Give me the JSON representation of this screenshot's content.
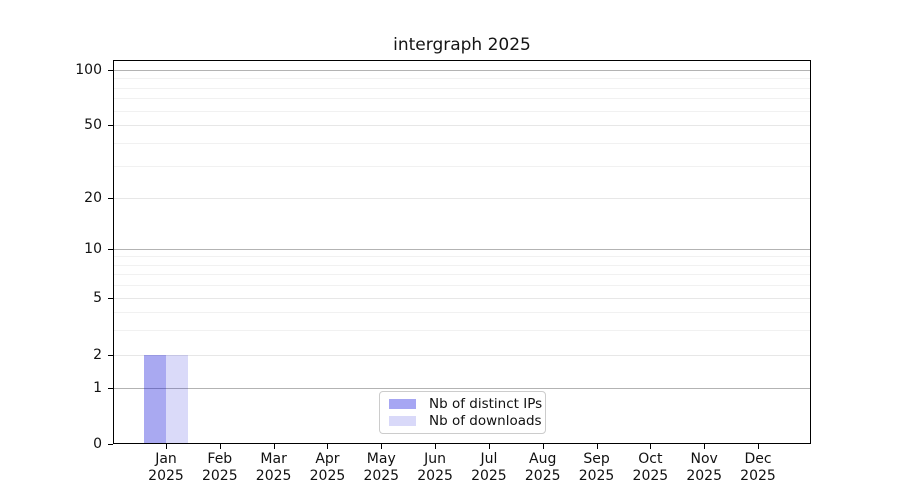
{
  "title": "intergraph 2025",
  "chart_data": {
    "type": "bar",
    "title": "intergraph 2025",
    "categories": [
      "Jan",
      "Feb",
      "Mar",
      "Apr",
      "May",
      "Jun",
      "Jul",
      "Aug",
      "Sep",
      "Oct",
      "Nov",
      "Dec"
    ],
    "year_label": "2025",
    "series": [
      {
        "name": "Nb of distinct IPs",
        "color": "rgba(10,10,215,0.35)",
        "color_on_white": "#a6a6f3",
        "values": [
          2,
          0,
          0,
          0,
          0,
          0,
          0,
          0,
          0,
          0,
          0,
          0
        ]
      },
      {
        "name": "Nb of downloads",
        "color": "rgba(10,10,215,0.15)",
        "color_on_white": "#d9d9f9",
        "values": [
          2,
          0,
          0,
          0,
          0,
          0,
          0,
          0,
          0,
          0,
          0,
          0
        ]
      }
    ],
    "y_axis": {
      "scale": "log-like (0 pinned at baseline)",
      "tick_values": [
        0,
        1,
        2,
        5,
        10,
        20,
        50,
        100
      ],
      "emphasized_tick_values": [
        1,
        10,
        100
      ],
      "minor_tick_values": [
        3,
        4,
        6,
        7,
        8,
        9,
        30,
        40,
        60,
        70,
        80,
        90
      ],
      "range": [
        0,
        100
      ]
    },
    "x_axis": {
      "tick_label_format": "month over year",
      "num_categories": 12
    },
    "legend": {
      "position": "lower center",
      "entries": [
        "Nb of distinct IPs",
        "Nb of downloads"
      ]
    },
    "grid": "horizontal major and minor lines",
    "colors": {
      "grid_emphasized": "#b3b3b3",
      "grid_major": "#e7e7e7",
      "grid_minor": "#f1f1f1",
      "spine": "#000000",
      "text": "#111111",
      "legend_border": "#cccccc"
    }
  }
}
